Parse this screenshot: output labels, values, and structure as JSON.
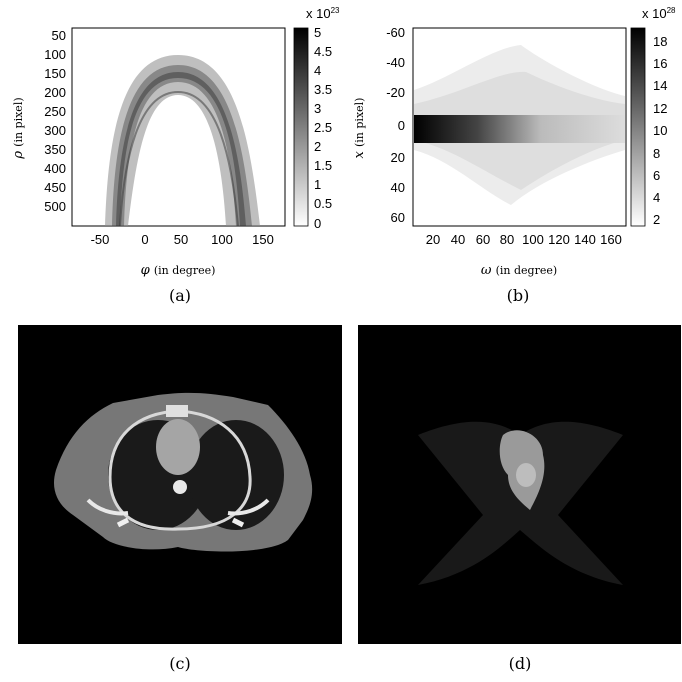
{
  "figure": {
    "panels": [
      {
        "caption": "(a)",
        "colorbar": {
          "exponent_label": "x 10",
          "exponent": "23",
          "ticks": [
            "5",
            "4.5",
            "4",
            "3.5",
            "3",
            "2.5",
            "2",
            "1.5",
            "1",
            "0.5",
            "0"
          ]
        },
        "y_ticks": [
          "50",
          "100",
          "150",
          "200",
          "250",
          "300",
          "350",
          "400",
          "450",
          "500"
        ],
        "x_ticks": [
          "-50",
          "0",
          "50",
          "100",
          "150"
        ],
        "y_label_symbol": "ρ",
        "y_label_text": "(in pixel)",
        "x_label_symbol": "φ",
        "x_label_text": "(in degree)"
      },
      {
        "caption": "(b)",
        "colorbar": {
          "exponent_label": "x 10",
          "exponent": "28",
          "ticks": [
            "18",
            "16",
            "14",
            "12",
            "10",
            "8",
            "6",
            "4",
            "2"
          ]
        },
        "y_ticks": [
          "-60",
          "-40",
          "-20",
          "0",
          "20",
          "40",
          "60"
        ],
        "x_ticks": [
          "20",
          "40",
          "60",
          "80",
          "100",
          "120",
          "140",
          "160"
        ],
        "y_label_symbol": "x",
        "y_label_text": "(in pixel)",
        "x_label_symbol": "ω",
        "x_label_text": "(in degree)"
      },
      {
        "caption": "(c)"
      },
      {
        "caption": "(d)"
      }
    ]
  }
}
